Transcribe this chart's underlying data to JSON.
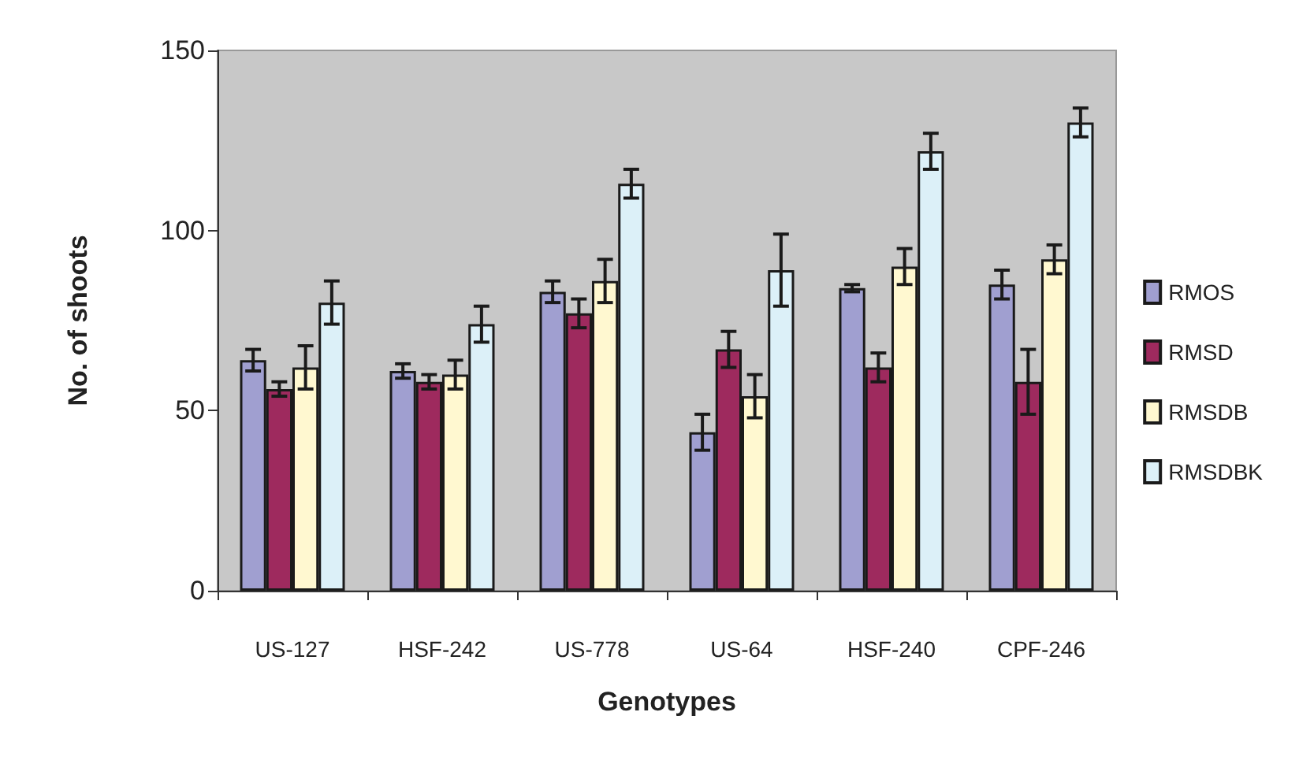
{
  "chart_data": {
    "type": "bar",
    "xlabel": "Genotypes",
    "ylabel": "No. of shoots",
    "categories": [
      "US-127",
      "HSF-242",
      "US-778",
      "US-64",
      "HSF-240",
      "CPF-246"
    ],
    "series": [
      {
        "name": "RMOS",
        "color": "#a09fd0",
        "values": [
          64,
          61,
          83,
          44,
          84,
          85
        ],
        "errors": [
          3,
          2,
          3,
          5,
          1,
          4
        ]
      },
      {
        "name": "RMSD",
        "color": "#9e2a5e",
        "values": [
          56,
          58,
          77,
          67,
          62,
          58
        ],
        "errors": [
          2,
          2,
          4,
          5,
          4,
          9
        ]
      },
      {
        "name": "RMSDB",
        "color": "#fff8d0",
        "values": [
          62,
          60,
          86,
          54,
          90,
          92
        ],
        "errors": [
          6,
          4,
          6,
          6,
          5,
          4
        ]
      },
      {
        "name": "RMSDBK",
        "color": "#dcf0f8",
        "values": [
          80,
          74,
          113,
          89,
          122,
          130
        ],
        "errors": [
          6,
          5,
          4,
          10,
          5,
          4
        ]
      }
    ],
    "ylim": [
      0,
      150
    ],
    "yticks": [
      0,
      50,
      100,
      150
    ],
    "grid": false,
    "legend": "right"
  }
}
